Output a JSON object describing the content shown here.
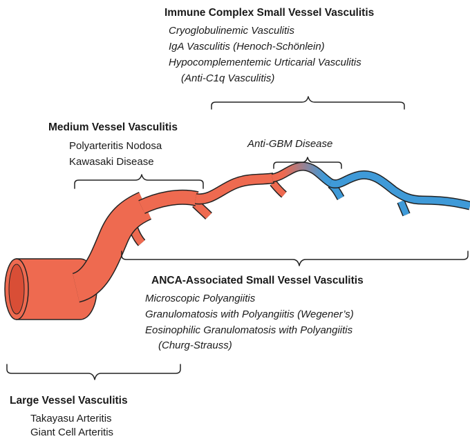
{
  "colors": {
    "vessel_red": "#ee6a50",
    "vessel_blue": "#3f9ad8",
    "outline": "#222222",
    "bracket": "#222222",
    "text": "#1a1a1a"
  },
  "immune_complex": {
    "heading": "Immune Complex Small Vessel Vasculitis",
    "items": [
      "Cryoglobulinemic Vasculitis",
      "IgA Vasculitis (Henoch-Schönlein)",
      "Hypocomplementemic Urticarial Vasculitis",
      "(Anti-C1q Vasculitis)"
    ]
  },
  "medium_vessel": {
    "heading": "Medium Vessel Vasculitis",
    "items": [
      "Polyarteritis Nodosa",
      "Kawasaki Disease"
    ]
  },
  "anti_gbm": {
    "label": "Anti-GBM Disease"
  },
  "anca": {
    "heading": "ANCA-Associated Small Vessel Vasculitis",
    "items": [
      "Microscopic Polyangiitis",
      "Granulomatosis with Polyangiitis (Wegener’s)",
      "Eosinophilic Granulomatosis with Polyangiitis",
      "(Churg-Strauss)"
    ]
  },
  "large_vessel": {
    "heading": "Large Vessel Vasculitis",
    "items": [
      "Takayasu Arteritis",
      "Giant Cell Arteritis"
    ]
  }
}
